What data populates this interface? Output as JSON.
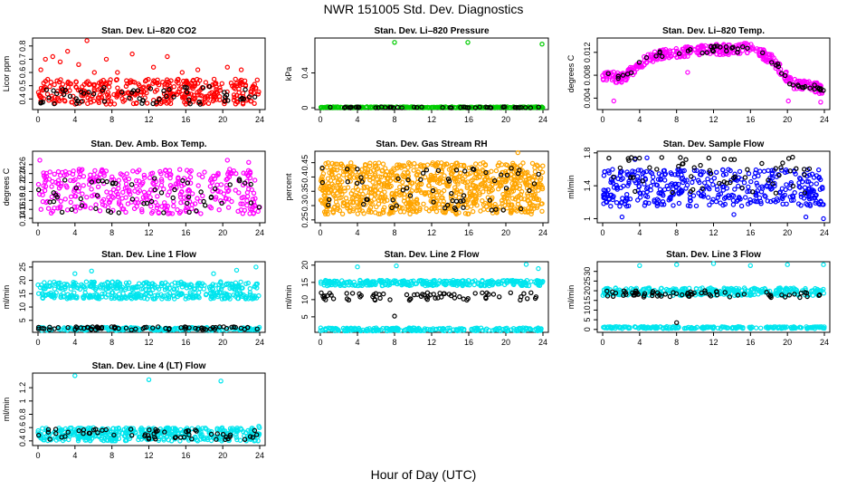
{
  "page": {
    "title": "NWR  151005  Std. Dev. Diagnostics",
    "xlabel": "Hour of Day (UTC)"
  },
  "colors": {
    "red": "#ff0000",
    "green": "#00cc00",
    "magenta": "#ff00ff",
    "orange": "#ffa500",
    "blue": "#0000ff",
    "cyan": "#00e5ee",
    "black": "#000000"
  },
  "chart_data": [
    {
      "type": "scatter",
      "title": "Stan. Dev. Li–820 CO2",
      "ylabel": "Licor ppm",
      "xlim": [
        0,
        24
      ],
      "xticks": [
        0,
        4,
        8,
        12,
        16,
        20,
        24
      ],
      "ylim": [
        0.32,
        0.86
      ],
      "yticks": [
        0.4,
        0.5,
        0.6,
        0.7,
        0.8
      ],
      "series": [
        {
          "name": "samples",
          "color": "#ff0000",
          "count": 380,
          "band": [
            0.36,
            0.55
          ],
          "outliers": [
            [
              0.3,
              0.62
            ],
            [
              0.8,
              0.7
            ],
            [
              1.6,
              0.72
            ],
            [
              2.4,
              0.68
            ],
            [
              3.2,
              0.76
            ],
            [
              4.4,
              0.66
            ],
            [
              5.3,
              0.84
            ],
            [
              6.1,
              0.6
            ],
            [
              7.4,
              0.7
            ],
            [
              8.6,
              0.6
            ],
            [
              10.2,
              0.74
            ],
            [
              12.5,
              0.64
            ],
            [
              14.0,
              0.72
            ],
            [
              15.6,
              0.6
            ],
            [
              17.3,
              0.62
            ],
            [
              20.5,
              0.64
            ],
            [
              22.0,
              0.62
            ]
          ]
        },
        {
          "name": "calibration",
          "color": "#000000",
          "count": 60,
          "band": [
            0.36,
            0.5
          ],
          "outliers": []
        }
      ]
    },
    {
      "type": "scatter",
      "title": "Stan. Dev. Li–820 Pressure",
      "ylabel": "kPa",
      "xlim": [
        0,
        24
      ],
      "xticks": [
        0,
        4,
        8,
        12,
        16,
        20,
        24
      ],
      "ylim": [
        -0.02,
        0.8
      ],
      "yticks": [
        0.0,
        0.4
      ],
      "series": [
        {
          "name": "samples",
          "color": "#00cc00",
          "count": 320,
          "band": [
            0.0,
            0.012
          ],
          "outliers": [
            [
              8.0,
              0.75
            ],
            [
              15.9,
              0.75
            ],
            [
              23.9,
              0.73
            ]
          ]
        },
        {
          "name": "calibration",
          "color": "#000000",
          "count": 50,
          "band": [
            0.0,
            0.01
          ],
          "outliers": []
        }
      ]
    },
    {
      "type": "scatter",
      "title": "Stan. Dev. Li–820 Temp.",
      "ylabel": "degrees C",
      "xlim": [
        0,
        24
      ],
      "xticks": [
        0,
        4,
        8,
        12,
        16,
        20,
        24
      ],
      "ylim": [
        0.002,
        0.0145
      ],
      "yticks": [
        0.004,
        0.008,
        0.012
      ],
      "series": [
        {
          "name": "samples",
          "color": "#ff00ff",
          "count": 380,
          "band": [
            -0.0009,
            0.0009
          ],
          "curve": [
            [
              0,
              0.008
            ],
            [
              2,
              0.0075
            ],
            [
              3.5,
              0.009
            ],
            [
              4.5,
              0.0105
            ],
            [
              6,
              0.0115
            ],
            [
              8,
              0.012
            ],
            [
              10,
              0.0122
            ],
            [
              12,
              0.0125
            ],
            [
              14,
              0.0125
            ],
            [
              15.5,
              0.0128
            ],
            [
              17,
              0.012
            ],
            [
              18.5,
              0.0105
            ],
            [
              19.5,
              0.0085
            ],
            [
              20.5,
              0.0065
            ],
            [
              22,
              0.0062
            ],
            [
              24,
              0.0055
            ]
          ],
          "outliers": [
            [
              1.2,
              0.0035
            ],
            [
              20.1,
              0.0035
            ],
            [
              23.6,
              0.0033
            ],
            [
              9.2,
              0.0085
            ]
          ]
        },
        {
          "name": "calibration",
          "color": "#000000",
          "count": 55,
          "band": [
            -0.0006,
            0.0006
          ],
          "curve": [
            [
              0,
              0.008
            ],
            [
              2,
              0.0075
            ],
            [
              3.5,
              0.009
            ],
            [
              4.5,
              0.0105
            ],
            [
              6,
              0.0115
            ],
            [
              8,
              0.012
            ],
            [
              10,
              0.0122
            ],
            [
              12,
              0.0125
            ],
            [
              14,
              0.0125
            ],
            [
              15.5,
              0.0128
            ],
            [
              17,
              0.012
            ],
            [
              18.5,
              0.0105
            ],
            [
              19.5,
              0.0085
            ],
            [
              20.5,
              0.0065
            ],
            [
              22,
              0.0062
            ],
            [
              24,
              0.0055
            ]
          ],
          "outliers": []
        }
      ]
    },
    {
      "type": "scatter",
      "title": "Stan. Dev. Amb. Box Temp.",
      "ylabel": "degrees C",
      "xlim": [
        0,
        24
      ],
      "xticks": [
        0,
        4,
        8,
        12,
        16,
        20,
        24
      ],
      "ylim": [
        0.13,
        0.29
      ],
      "yticks": [
        0.14,
        0.16,
        0.18,
        0.2,
        0.22,
        0.24,
        0.26
      ],
      "series": [
        {
          "name": "samples",
          "color": "#ff00ff",
          "count": 380,
          "band": [
            0.15,
            0.25
          ],
          "outliers": [
            [
              0.2,
              0.27
            ],
            [
              20.5,
              0.27
            ],
            [
              22.8,
              0.265
            ]
          ]
        },
        {
          "name": "calibration",
          "color": "#000000",
          "count": 55,
          "band": [
            0.15,
            0.23
          ],
          "outliers": []
        }
      ]
    },
    {
      "type": "scatter",
      "title": "Stan. Dev. Gas Stream RH",
      "ylabel": "percent",
      "xlim": [
        0,
        24
      ],
      "xticks": [
        0,
        4,
        8,
        12,
        16,
        20,
        24
      ],
      "ylim": [
        0.24,
        0.49
      ],
      "yticks": [
        0.25,
        0.3,
        0.35,
        0.4,
        0.45
      ],
      "series": [
        {
          "name": "samples",
          "color": "#ffa500",
          "count": 900,
          "band": [
            0.27,
            0.45
          ],
          "outliers": [
            [
              21.3,
              0.485
            ]
          ]
        },
        {
          "name": "calibration",
          "color": "#000000",
          "count": 60,
          "band": [
            0.28,
            0.44
          ],
          "outliers": []
        }
      ]
    },
    {
      "type": "scatter",
      "title": "Stan. Dev. Sample Flow",
      "ylabel": "ml/min",
      "xlim": [
        0,
        24
      ],
      "xticks": [
        0,
        4,
        8,
        12,
        16,
        20,
        24
      ],
      "ylim": [
        0.95,
        1.82
      ],
      "yticks": [
        1.0,
        1.4,
        1.8
      ],
      "series": [
        {
          "name": "samples",
          "color": "#0000ff",
          "count": 420,
          "band": [
            1.15,
            1.6
          ],
          "outliers": [
            [
              2.1,
              1.02
            ],
            [
              3.5,
              1.72
            ],
            [
              4.8,
              1.74
            ],
            [
              14.2,
              1.05
            ],
            [
              22.0,
              1.02
            ],
            [
              23.9,
              1.0
            ]
          ]
        },
        {
          "name": "calibration",
          "color": "#000000",
          "count": 60,
          "band": [
            1.3,
            1.75
          ],
          "outliers": []
        }
      ]
    },
    {
      "type": "scatter",
      "title": "Stan. Dev. Line 1 Flow",
      "ylabel": "ml/min",
      "xlim": [
        0,
        24
      ],
      "xticks": [
        0,
        4,
        8,
        12,
        16,
        20,
        24
      ],
      "ylim": [
        0.5,
        27
      ],
      "yticks": [
        5,
        10,
        15,
        20,
        25
      ],
      "series": [
        {
          "name": "band-upper",
          "color": "#00e5ee",
          "count": 220,
          "band": [
            16.5,
            19.5
          ],
          "outliers": [
            [
              4.0,
              22.5
            ],
            [
              5.8,
              23.5
            ],
            [
              19.0,
              22.5
            ],
            [
              21.5,
              23.8
            ],
            [
              23.6,
              25.0
            ]
          ]
        },
        {
          "name": "band-lower",
          "color": "#00e5ee",
          "count": 220,
          "band": [
            13.0,
            15.5
          ],
          "outliers": []
        },
        {
          "name": "baseline",
          "color": "#00e5ee",
          "count": 200,
          "band": [
            1.2,
            2.4
          ],
          "outliers": []
        },
        {
          "name": "calibration",
          "color": "#000000",
          "count": 70,
          "band": [
            1.4,
            2.6
          ],
          "outliers": []
        }
      ]
    },
    {
      "type": "scatter",
      "title": "Stan. Dev. Line 2 Flow",
      "ylabel": "ml/min",
      "xlim": [
        0,
        24
      ],
      "xticks": [
        0,
        4,
        8,
        12,
        16,
        20,
        24
      ],
      "ylim": [
        0.5,
        21
      ],
      "yticks": [
        5,
        10,
        15,
        20
      ],
      "series": [
        {
          "name": "samples-upper",
          "color": "#00e5ee",
          "count": 300,
          "band": [
            14.0,
            15.6
          ],
          "outliers": [
            [
              4.0,
              19.5
            ],
            [
              8.2,
              19.8
            ],
            [
              22.2,
              20.2
            ],
            [
              23.5,
              19.0
            ]
          ]
        },
        {
          "name": "baseline",
          "color": "#00e5ee",
          "count": 220,
          "band": [
            0.9,
            1.8
          ],
          "outliers": []
        },
        {
          "name": "calibration",
          "color": "#000000",
          "count": 70,
          "band": [
            9.8,
            12.0
          ],
          "outliers": [
            [
              8.0,
              5.2
            ]
          ]
        }
      ]
    },
    {
      "type": "scatter",
      "title": "Stan. Dev. Line 3 Flow",
      "ylabel": "ml/min",
      "xlim": [
        0,
        24
      ],
      "xticks": [
        0,
        4,
        8,
        12,
        16,
        20,
        24
      ],
      "ylim": [
        -1.5,
        35
      ],
      "yticks": [
        0,
        5,
        10,
        15,
        20,
        25,
        30
      ],
      "series": [
        {
          "name": "samples-upper",
          "color": "#00e5ee",
          "count": 300,
          "band": [
            17.5,
            21.5
          ],
          "outliers": [
            [
              4.0,
              33.0
            ],
            [
              8.0,
              33.5
            ],
            [
              12.0,
              34.0
            ],
            [
              16.0,
              33.0
            ],
            [
              20.0,
              33.5
            ],
            [
              23.9,
              33.5
            ]
          ]
        },
        {
          "name": "baseline",
          "color": "#00e5ee",
          "count": 220,
          "band": [
            0.4,
            1.5
          ],
          "outliers": []
        },
        {
          "name": "calibration",
          "color": "#000000",
          "count": 70,
          "band": [
            16.5,
            20.0
          ],
          "outliers": [
            [
              8.0,
              3.5
            ]
          ]
        }
      ]
    },
    {
      "type": "scatter",
      "title": "Stan. Dev. Line 4 (LT) Flow",
      "ylabel": "ml/min",
      "xlim": [
        0,
        24
      ],
      "xticks": [
        0,
        4,
        8,
        12,
        16,
        20,
        24
      ],
      "ylim": [
        0.33,
        1.42
      ],
      "yticks": [
        0.4,
        0.6,
        0.8,
        1.0,
        1.2
      ],
      "series": [
        {
          "name": "samples",
          "color": "#00e5ee",
          "count": 420,
          "band": [
            0.4,
            0.6
          ],
          "outliers": [
            [
              4.0,
              1.38
            ],
            [
              12.0,
              1.32
            ],
            [
              19.8,
              1.3
            ],
            [
              23.9,
              0.62
            ]
          ]
        },
        {
          "name": "calibration",
          "color": "#000000",
          "count": 60,
          "band": [
            0.42,
            0.58
          ],
          "outliers": []
        }
      ]
    }
  ]
}
